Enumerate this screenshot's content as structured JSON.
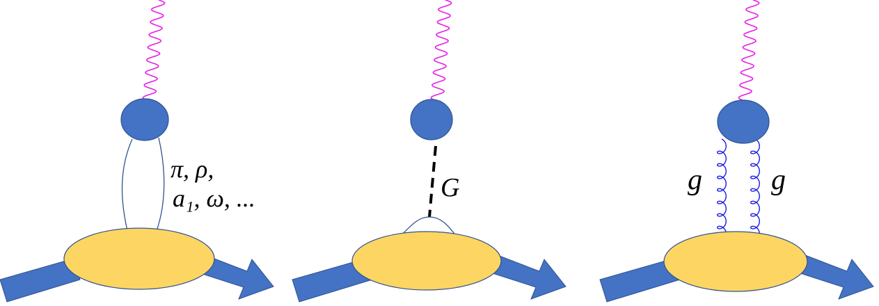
{
  "panels": [
    {
      "labels": [
        "π, ρ,",
        "a₁, ω, ..."
      ]
    },
    {
      "labels": [
        "G"
      ]
    },
    {
      "labels": [
        "g",
        "g"
      ]
    }
  ]
}
